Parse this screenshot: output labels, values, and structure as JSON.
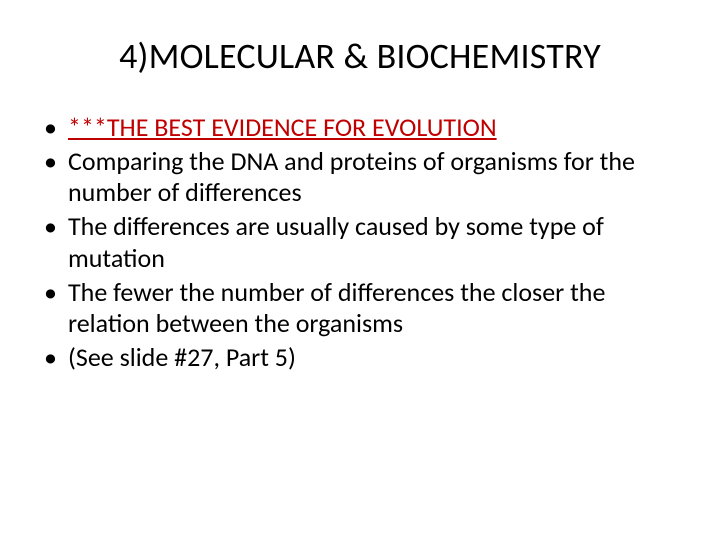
{
  "title": "4)MOLECULAR & BIOCHEMISTRY",
  "title_color": "#000000",
  "title_fontsize": 36,
  "bullets": [
    {
      "text": "***THE BEST EVIDENCE FOR EVOLUTION",
      "emphasis": true
    },
    {
      "text": "Comparing the DNA and proteins of organisms for the number of differences",
      "emphasis": false
    },
    {
      "text": "The differences are usually caused by some type of mutation",
      "emphasis": false
    },
    {
      "text": "The fewer the number of differences the closer the relation between the organisms",
      "emphasis": false
    },
    {
      "text": "(See slide #27, Part 5)",
      "emphasis": false
    }
  ],
  "bullet_fontsize": 26,
  "bullet_color": "#000000",
  "emphasis_color": "#c00000",
  "background_color": "#ffffff"
}
